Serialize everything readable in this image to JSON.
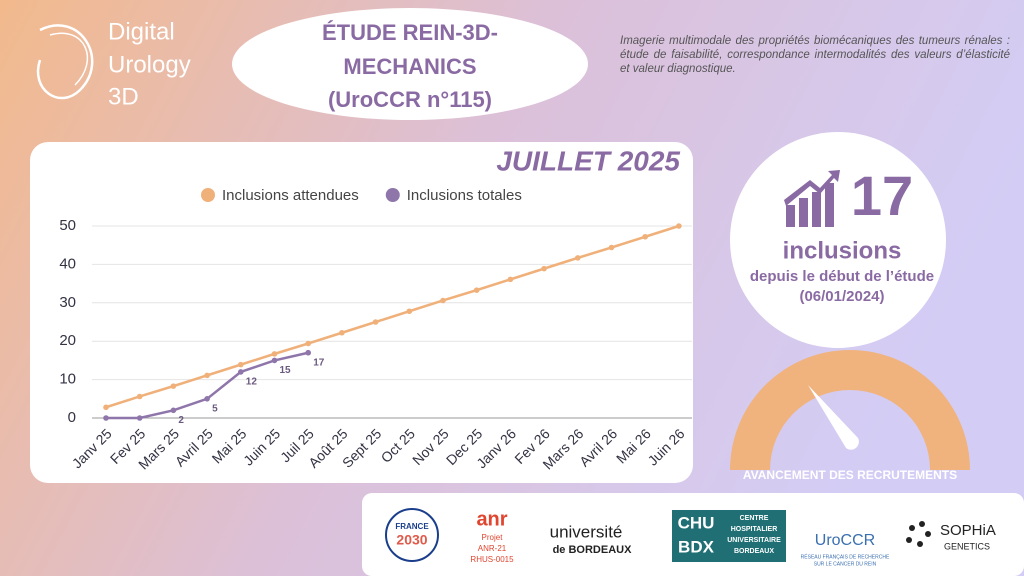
{
  "logo": {
    "lines": [
      "Digital",
      "Urology",
      "3D"
    ]
  },
  "header": {
    "title_lines": [
      "ÉTUDE REIN-3D-",
      "MECHANICS",
      "(UroCCR n°115)"
    ],
    "description": "Imagerie multimodale des propriétés biomécaniques des tumeurs rénales : étude de faisabilité, correspondance intermodalités des valeurs d’élasticité et valeur diagnostique."
  },
  "chart_data": {
    "type": "line",
    "title": "JUILLET 2025",
    "categories": [
      "Janv 25",
      "Fev 25",
      "Mars 25",
      "Avril 25",
      "Mai 25",
      "Juin 25",
      "Juil 25",
      "Août 25",
      "Sept 25",
      "Oct 25",
      "Nov 25",
      "Dec 25",
      "Janv 26",
      "Fev 26",
      "Mars 26",
      "Avril 26",
      "Mai 26",
      "Juin 26"
    ],
    "series": [
      {
        "name": "Inclusions attendues",
        "color": "#f0b07a",
        "values": [
          2.8,
          5.6,
          8.3,
          11.1,
          13.9,
          16.7,
          19.4,
          22.2,
          25,
          27.8,
          30.6,
          33.3,
          36.1,
          38.9,
          41.7,
          44.4,
          47.2,
          50
        ]
      },
      {
        "name": "Inclusions totales",
        "color": "#8e75aa",
        "values": [
          0,
          0,
          2,
          5,
          12,
          15,
          17,
          null,
          null,
          null,
          null,
          null,
          null,
          null,
          null,
          null,
          null,
          null
        ],
        "value_labels": [
          null,
          null,
          "2",
          "5",
          "12",
          "15",
          "17",
          null,
          null,
          null,
          null,
          null,
          null,
          null,
          null,
          null,
          null,
          null
        ]
      }
    ],
    "ylim": [
      0,
      50
    ],
    "yticks": [
      0,
      10,
      20,
      30,
      40,
      50
    ],
    "grid": true,
    "legend": "top"
  },
  "summary": {
    "count": "17",
    "unit": "inclusions",
    "since": "depuis le début de l’étude",
    "date": "(06/01/2024)",
    "gauge_label": "AVANCEMENT DES RECRUTEMENTS"
  },
  "partners": {
    "france": [
      "FRANCE",
      "2030"
    ],
    "anr": "anr",
    "anr_project": [
      "Projet",
      "ANR-21",
      "RHUS-0015"
    ],
    "ub": [
      "université",
      "de BORDEAUX"
    ],
    "chu": [
      "CHU",
      "BDX"
    ],
    "chu_full": [
      "CENTRE",
      "HOSPITALIER",
      "UNIVERSITAIRE",
      "BORDEAUX"
    ],
    "uroccr": "UroCCR",
    "uroccr_sub": [
      "RÉSEAU FRANÇAIS DE RECHERCHE",
      "SUR LE CANCER DU REIN"
    ],
    "sophia": [
      "SOPHiA",
      "GENETICS"
    ]
  }
}
